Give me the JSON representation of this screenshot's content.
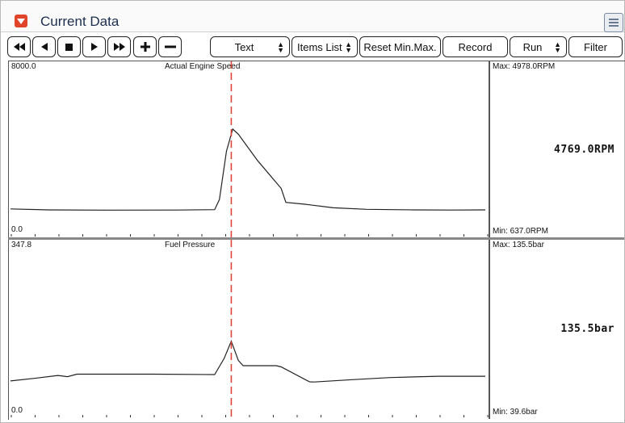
{
  "window": {
    "title": "Current Data"
  },
  "toolbar": {
    "text_select": "Text",
    "items_list": "Items List",
    "reset_minmax": "Reset Min.Max.",
    "record": "Record",
    "run_select": "Run",
    "filter": "Filter"
  },
  "colors": {
    "cursor": "#e0453a",
    "trace": "#222222",
    "accent": "#e0452a"
  },
  "cursor_fraction": 0.465,
  "graphs": [
    {
      "name": "Actual Engine Speed",
      "top_scale": "8000.0",
      "bottom_scale": "0.0",
      "max": "Max: 4978.0RPM",
      "min": "Min:  637.0RPM",
      "current": "4769.0RPM",
      "ylim": [
        0,
        8000
      ],
      "trace": [
        [
          0,
          700
        ],
        [
          0.08,
          650
        ],
        [
          0.2,
          637
        ],
        [
          0.35,
          640
        ],
        [
          0.43,
          660
        ],
        [
          0.44,
          1200
        ],
        [
          0.455,
          3800
        ],
        [
          0.468,
          4978
        ],
        [
          0.48,
          4700
        ],
        [
          0.52,
          3300
        ],
        [
          0.57,
          1800
        ],
        [
          0.58,
          1050
        ],
        [
          0.62,
          950
        ],
        [
          0.68,
          760
        ],
        [
          0.75,
          680
        ],
        [
          0.85,
          650
        ],
        [
          0.93,
          640
        ],
        [
          1,
          650
        ]
      ]
    },
    {
      "name": "Fuel Pressure",
      "top_scale": "347.8",
      "bottom_scale": "0.0",
      "max": "Max: 135.5bar",
      "min": "Min:  39.6bar",
      "current": "135.5bar",
      "ylim": [
        0,
        347.8
      ],
      "trace": [
        [
          0,
          42
        ],
        [
          0.05,
          48
        ],
        [
          0.1,
          55
        ],
        [
          0.12,
          52
        ],
        [
          0.14,
          58
        ],
        [
          0.2,
          58
        ],
        [
          0.3,
          58
        ],
        [
          0.43,
          57
        ],
        [
          0.45,
          95
        ],
        [
          0.465,
          135.5
        ],
        [
          0.48,
          90
        ],
        [
          0.49,
          78
        ],
        [
          0.56,
          78
        ],
        [
          0.57,
          75
        ],
        [
          0.63,
          40
        ],
        [
          0.64,
          39.6
        ],
        [
          0.72,
          45
        ],
        [
          0.8,
          50
        ],
        [
          0.9,
          53
        ],
        [
          1,
          53
        ]
      ]
    }
  ]
}
